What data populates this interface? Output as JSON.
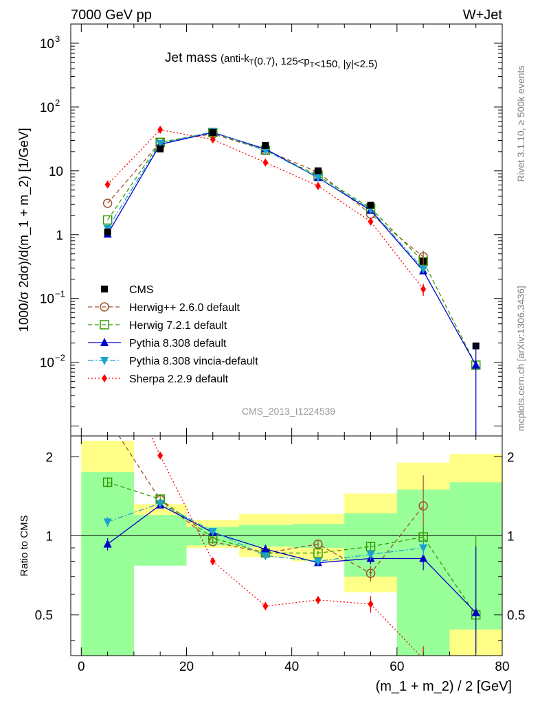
{
  "header": {
    "energy": "7000 GeV pp",
    "process": "W+Jet"
  },
  "side_labels": {
    "rivet": "Rivet 3.1.10, ≥ 500k events",
    "mcplots": "mcplots.cern.ch [arXiv:1306.3436]"
  },
  "chart_data": {
    "type": "line",
    "title": "Jet mass",
    "title_detail": "(anti-k_T(0.7), 125<p_T<150, |y|<2.5)",
    "watermark": "CMS_2013_I1224539",
    "xlabel": "(m_1 + m_2) / 2 [GeV]",
    "ylabel": "1000/σ 2dσ)/d(m_1 + m_2) [1/GeV]",
    "ratio_ylabel": "Ratio to CMS",
    "xlim": [
      -2,
      80
    ],
    "ylim": [
      0.0007,
      2000
    ],
    "yscale": "log",
    "ratio_ylim": [
      0.35,
      2.4
    ],
    "ratio_yscale": "log",
    "x_ticks": [
      "0",
      "20",
      "40",
      "60",
      "80"
    ],
    "y_ticks": [
      {
        "value": 1000,
        "base": "10",
        "exp": "3"
      },
      {
        "value": 100,
        "base": "10",
        "exp": "2"
      },
      {
        "value": 10,
        "base": "10",
        "exp": ""
      },
      {
        "value": 1,
        "base": "1",
        "exp": ""
      },
      {
        "value": 0.1,
        "base": "10",
        "exp": "−1"
      },
      {
        "value": 0.01,
        "base": "10",
        "exp": "−2"
      }
    ],
    "ratio_ticks": [
      "0.5",
      "1",
      "2"
    ],
    "ratio_tick_values": [
      0.5,
      1,
      2
    ],
    "legend_position": "bottom-left",
    "x": [
      5,
      15,
      25,
      35,
      45,
      55,
      65,
      75
    ],
    "bin_edges": [
      0,
      10,
      20,
      30,
      40,
      50,
      60,
      70,
      80
    ],
    "data": {
      "name": "CMS",
      "color": "#000000",
      "values": [
        1.1,
        22,
        40,
        25,
        10,
        2.9,
        0.38,
        0.018
      ],
      "band_green": [
        [
          0.35,
          1.75
        ],
        [
          0.77,
          1.2
        ],
        [
          0.92,
          1.08
        ],
        [
          0.91,
          1.1
        ],
        [
          0.9,
          1.11
        ],
        [
          0.7,
          1.22
        ],
        [
          0.35,
          1.5
        ],
        [
          0.44,
          1.6
        ]
      ],
      "band_yellow": [
        [
          0.35,
          2.3
        ],
        [
          0.78,
          1.32
        ],
        [
          0.9,
          1.15
        ],
        [
          0.83,
          1.21
        ],
        [
          0.8,
          1.21
        ],
        [
          0.61,
          1.45
        ],
        [
          0.35,
          1.9
        ],
        [
          0.35,
          2.05
        ]
      ]
    },
    "series": [
      {
        "name": "Herwig++ 2.6.0 default",
        "color": "#a0522d",
        "dash": "6,4",
        "marker": "open-circle",
        "values": [
          3.1,
          28,
          38,
          21,
          9.5,
          2.1,
          0.45,
          null
        ],
        "ratio": [
          2.8,
          1.37,
          0.95,
          0.86,
          0.93,
          0.72,
          1.3,
          null
        ],
        "ratio_err": [
          0,
          0.03,
          0.02,
          0.02,
          0.03,
          0.05,
          0.4,
          0
        ]
      },
      {
        "name": "Herwig 7.2.1 default",
        "color": "#339900",
        "dash": "6,4",
        "marker": "open-square",
        "values": [
          1.7,
          28,
          40,
          21,
          8.4,
          2.6,
          0.38,
          0.009
        ],
        "ratio": [
          1.6,
          1.38,
          0.98,
          0.86,
          0.86,
          0.91,
          0.99,
          0.5
        ],
        "ratio_err": [
          0.07,
          0.03,
          0.02,
          0.02,
          0.02,
          0.04,
          0.1,
          0.5
        ]
      },
      {
        "name": "Pythia 8.308 default",
        "color": "#0000cc",
        "dash": "",
        "marker": "triangle-up",
        "values": [
          1.02,
          26,
          40,
          22,
          7.8,
          2.4,
          0.27,
          0.009
        ],
        "ratio": [
          0.93,
          1.31,
          1.03,
          0.89,
          0.79,
          0.82,
          0.82,
          0.51
        ],
        "ratio_err": [
          0.05,
          0.03,
          0.02,
          0.02,
          0.02,
          0.04,
          0.08,
          0.4
        ]
      },
      {
        "name": "Pythia 8.308 vincia-default",
        "color": "#1aa3cc",
        "dash": "8,3,2,3",
        "marker": "triangle-down",
        "values": [
          1.25,
          27,
          41,
          21,
          7.9,
          2.5,
          0.29,
          null
        ],
        "ratio": [
          1.13,
          1.33,
          1.04,
          0.84,
          0.8,
          0.85,
          0.9,
          null
        ],
        "ratio_err": [
          0.05,
          0.03,
          0.02,
          0.02,
          0.02,
          0.04,
          0.06,
          0
        ]
      },
      {
        "name": "Sherpa 2.2.9 default",
        "color": "#ff0000",
        "dash": "2,3",
        "marker": "diamond",
        "values": [
          6.1,
          44,
          31,
          13.5,
          5.8,
          1.6,
          0.14,
          null
        ],
        "ratio": [
          5.5,
          2.02,
          0.8,
          0.54,
          0.57,
          0.55,
          0.34,
          null
        ],
        "ratio_err": [
          0,
          0.04,
          0.02,
          0.02,
          0.02,
          0.04,
          0.04,
          0
        ]
      }
    ]
  }
}
